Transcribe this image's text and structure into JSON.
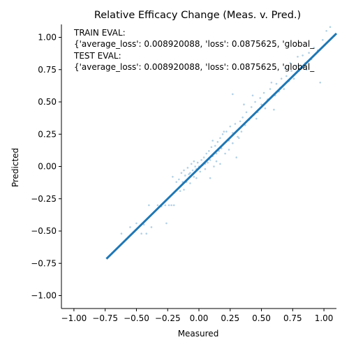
{
  "chart_data": {
    "type": "scatter",
    "title": "Relative Efficacy Change (Meas. v. Pred.)",
    "xlabel": "Measured",
    "ylabel": "Predicted",
    "xlim": [
      -1.1,
      1.1
    ],
    "ylim": [
      -1.1,
      1.1
    ],
    "xticks": [
      -1.0,
      -0.75,
      -0.5,
      -0.25,
      0.0,
      0.25,
      0.5,
      0.75,
      1.0
    ],
    "xtick_labels": [
      "−1.00",
      "−0.75",
      "−0.50",
      "−0.25",
      "0.00",
      "0.25",
      "0.50",
      "0.75",
      "1.00"
    ],
    "yticks": [
      -1.0,
      -0.75,
      -0.5,
      -0.25,
      0.0,
      0.25,
      0.5,
      0.75,
      1.0
    ],
    "ytick_labels": [
      "−1.00",
      "−0.75",
      "−0.50",
      "−0.25",
      "0.00",
      "0.25",
      "0.50",
      "0.75",
      "1.00"
    ],
    "grid": false,
    "series": [
      {
        "type": "scatter",
        "color": "#1f77b4",
        "points": [
          [
            -0.62,
            -0.52
          ],
          [
            -0.55,
            -0.47
          ],
          [
            -0.5,
            -0.44
          ],
          [
            -0.46,
            -0.52
          ],
          [
            -0.44,
            -0.45
          ],
          [
            -0.42,
            -0.52
          ],
          [
            -0.4,
            -0.3
          ],
          [
            -0.38,
            -0.47
          ],
          [
            -0.33,
            -0.3
          ],
          [
            -0.3,
            -0.31
          ],
          [
            -0.27,
            -0.3
          ],
          [
            -0.26,
            -0.44
          ],
          [
            -0.24,
            -0.3
          ],
          [
            -0.22,
            -0.3
          ],
          [
            -0.2,
            -0.3
          ],
          [
            -0.18,
            -0.12
          ],
          [
            -0.16,
            -0.1
          ],
          [
            -0.15,
            -0.19
          ],
          [
            -0.14,
            -0.05
          ],
          [
            -0.13,
            -0.12
          ],
          [
            -0.12,
            -0.03
          ],
          [
            -0.11,
            -0.07
          ],
          [
            -0.1,
            -0.12
          ],
          [
            -0.09,
            -0.01
          ],
          [
            -0.08,
            -0.06
          ],
          [
            -0.07,
            -0.05
          ],
          [
            -0.06,
            0.02
          ],
          [
            -0.05,
            -0.03
          ],
          [
            -0.04,
            -0.08
          ],
          [
            -0.03,
            0.0
          ],
          [
            -0.02,
            -0.02
          ],
          [
            -0.01,
            0.03
          ],
          [
            0.0,
            0.0
          ],
          [
            0.01,
            -0.04
          ],
          [
            0.02,
            0.05
          ],
          [
            0.03,
            0.01
          ],
          [
            0.04,
            0.07
          ],
          [
            0.05,
            0.02
          ],
          [
            0.06,
            0.1
          ],
          [
            0.07,
            0.03
          ],
          [
            0.08,
            0.12
          ],
          [
            0.09,
            0.05
          ],
          [
            0.1,
            0.15
          ],
          [
            0.11,
            0.08
          ],
          [
            0.12,
            0.0
          ],
          [
            0.13,
            0.16
          ],
          [
            0.14,
            0.1
          ],
          [
            0.15,
            0.19
          ],
          [
            0.16,
            0.12
          ],
          [
            0.17,
            0.22
          ],
          [
            0.18,
            0.14
          ],
          [
            0.19,
            0.25
          ],
          [
            0.2,
            0.18
          ],
          [
            0.21,
            0.1
          ],
          [
            0.22,
            0.27
          ],
          [
            0.24,
            0.2
          ],
          [
            0.25,
            0.31
          ],
          [
            0.27,
            0.26
          ],
          [
            0.29,
            0.33
          ],
          [
            0.3,
            0.07
          ],
          [
            0.31,
            0.23
          ],
          [
            0.32,
            0.29
          ],
          [
            0.33,
            0.35
          ],
          [
            0.35,
            0.38
          ],
          [
            0.37,
            0.32
          ],
          [
            0.38,
            0.42
          ],
          [
            0.4,
            0.36
          ],
          [
            0.42,
            0.46
          ],
          [
            0.44,
            0.4
          ],
          [
            0.45,
            0.5
          ],
          [
            0.47,
            0.42
          ],
          [
            0.49,
            0.53
          ],
          [
            0.5,
            0.48
          ],
          [
            0.52,
            0.57
          ],
          [
            0.55,
            0.52
          ],
          [
            0.57,
            0.6
          ],
          [
            0.59,
            0.55
          ],
          [
            0.6,
            0.44
          ],
          [
            0.62,
            0.64
          ],
          [
            0.64,
            0.58
          ],
          [
            0.66,
            0.68
          ],
          [
            0.68,
            0.6
          ],
          [
            0.7,
            0.7
          ],
          [
            0.72,
            0.66
          ],
          [
            0.74,
            0.74
          ],
          [
            0.76,
            0.68
          ],
          [
            0.78,
            0.78
          ],
          [
            0.8,
            0.74
          ],
          [
            0.83,
            0.86
          ],
          [
            0.85,
            0.8
          ],
          [
            0.88,
            0.88
          ],
          [
            0.9,
            0.83
          ],
          [
            0.92,
            0.92
          ],
          [
            0.95,
            0.9
          ],
          [
            0.97,
            0.65
          ],
          [
            0.99,
            0.98
          ],
          [
            1.02,
            1.05
          ],
          [
            1.05,
            1.08
          ],
          [
            -0.21,
            -0.08
          ],
          [
            0.27,
            0.56
          ],
          [
            0.09,
            -0.09
          ],
          [
            0.17,
            0.02
          ],
          [
            -0.07,
            -0.13
          ],
          [
            0.36,
            0.48
          ],
          [
            0.53,
            0.45
          ],
          [
            0.73,
            0.8
          ],
          [
            0.43,
            0.55
          ],
          [
            0.65,
            0.61
          ],
          [
            -0.12,
            -0.18
          ],
          [
            0.14,
            0.04
          ],
          [
            -0.04,
            0.04
          ],
          [
            0.05,
            -0.02
          ],
          [
            0.24,
            0.13
          ],
          [
            0.32,
            0.22
          ],
          [
            0.11,
            0.2
          ],
          [
            0.58,
            0.65
          ],
          [
            0.79,
            0.85
          ],
          [
            0.86,
            0.75
          ],
          [
            0.34,
            0.27
          ],
          [
            0.46,
            0.37
          ],
          [
            -0.02,
            -0.09
          ],
          [
            0.2,
            0.27
          ],
          [
            0.27,
            0.18
          ],
          [
            0.61,
            0.55
          ],
          [
            0.69,
            0.76
          ]
        ]
      },
      {
        "type": "line",
        "color": "#1f77b4",
        "points": [
          [
            -0.74,
            -0.715
          ],
          [
            1.1,
            1.03
          ]
        ]
      }
    ],
    "annotations": [
      "TRAIN EVAL:",
      "{'average_loss': 0.008920088, 'loss': 0.0875625, 'global_",
      "TEST EVAL:",
      "{'average_loss': 0.008920088, 'loss': 0.0875625, 'global_"
    ]
  }
}
